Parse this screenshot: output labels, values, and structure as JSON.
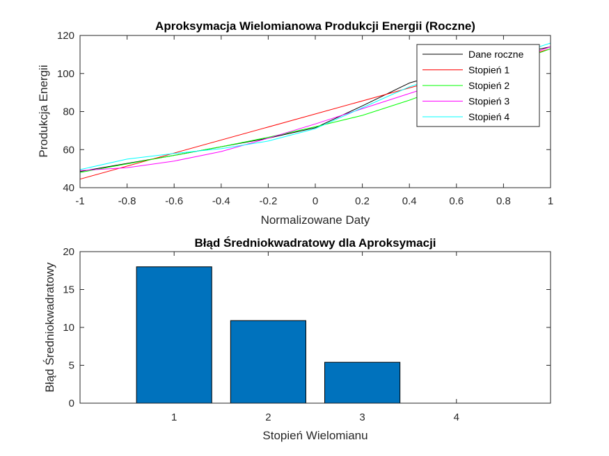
{
  "chart_data": [
    {
      "type": "line",
      "title": "Aproksymacja Wielomianowa Produkcji Energii (Roczne)",
      "xlabel": "Normalizowane Daty",
      "ylabel": "Produkcja Energii",
      "xlim": [
        -1,
        1
      ],
      "ylim": [
        40,
        120
      ],
      "xticks": [
        "-1",
        "-0.8",
        "-0.6",
        "-0.4",
        "-0.2",
        "0",
        "0.2",
        "0.4",
        "0.6",
        "0.8",
        "1"
      ],
      "xtick_values": [
        -1,
        -0.8,
        -0.6,
        -0.4,
        -0.2,
        0,
        0.2,
        0.4,
        0.6,
        0.8,
        1
      ],
      "yticks": [
        "40",
        "60",
        "80",
        "100",
        "120"
      ],
      "ytick_values": [
        40,
        60,
        80,
        100,
        120
      ],
      "legend_position": "top-right",
      "series": [
        {
          "name": "Dane roczne",
          "color": "#000000",
          "x": [
            -1,
            -0.6,
            -0.2,
            0,
            0.2,
            0.4,
            0.6,
            0.8,
            1
          ],
          "y": [
            48.5,
            57,
            66,
            71.5,
            83,
            95,
            102,
            109,
            114
          ]
        },
        {
          "name": "Stopień 1",
          "color": "#ff0000",
          "x": [
            -1,
            1
          ],
          "y": [
            44.5,
            113
          ]
        },
        {
          "name": "Stopień 2",
          "color": "#00ff00",
          "x": [
            -1,
            -0.8,
            -0.6,
            -0.4,
            -0.2,
            0,
            0.2,
            0.4,
            0.6,
            0.8,
            1
          ],
          "y": [
            48,
            52.5,
            57,
            61.5,
            66.5,
            72,
            78,
            86,
            95,
            104,
            113
          ]
        },
        {
          "name": "Stopień 3",
          "color": "#ff00ff",
          "x": [
            -1,
            -0.8,
            -0.6,
            -0.4,
            -0.2,
            0,
            0.2,
            0.4,
            0.6,
            0.8,
            1
          ],
          "y": [
            49,
            50.5,
            54,
            59,
            66,
            73.5,
            81.5,
            89.5,
            97.5,
            105.5,
            114
          ]
        },
        {
          "name": "Stopień 4",
          "color": "#00ffff",
          "x": [
            -1,
            -0.8,
            -0.6,
            -0.4,
            -0.2,
            0,
            0.2,
            0.4,
            0.6,
            0.8,
            1
          ],
          "y": [
            49.5,
            55,
            58,
            60.5,
            64.5,
            71,
            82,
            93,
            101,
            108,
            116
          ]
        }
      ]
    },
    {
      "type": "bar",
      "title": "Błąd Średniokwadratowy dla Aproksymacji",
      "xlabel": "Stopień Wielomianu",
      "ylabel": "Błąd Średniokwadratowy",
      "xlim": [
        0,
        5
      ],
      "ylim": [
        0,
        20
      ],
      "xticks": [
        "1",
        "2",
        "3",
        "4"
      ],
      "xtick_values": [
        1,
        2,
        3,
        4
      ],
      "yticks": [
        "0",
        "5",
        "10",
        "15",
        "20"
      ],
      "ytick_values": [
        0,
        5,
        10,
        15,
        20
      ],
      "bar_color": "#0072bd",
      "bar_width": 0.8,
      "x": [
        1,
        2,
        3,
        4
      ],
      "values": [
        18,
        10.9,
        5.4,
        0
      ]
    }
  ]
}
